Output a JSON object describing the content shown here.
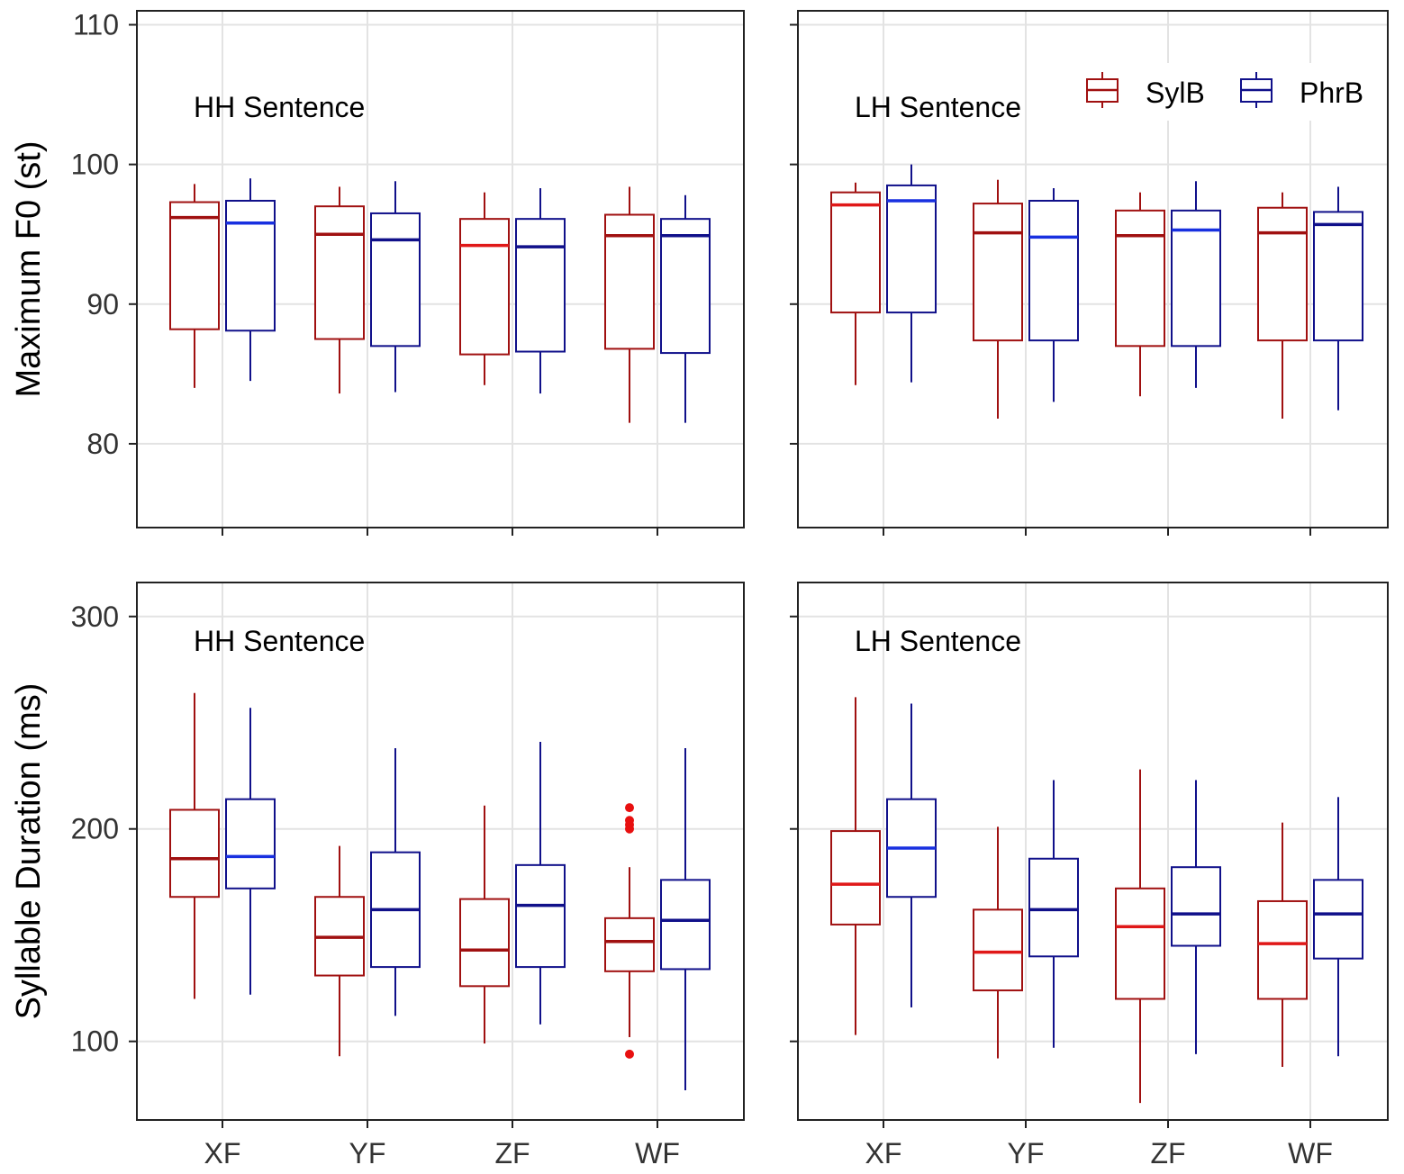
{
  "colors": {
    "sylb": "#a01010",
    "sylb_median_light": "#e01818",
    "phrb": "#10108a",
    "phrb_median_light": "#1830e0",
    "outlier": "#e81010",
    "grid": "#e3e3e3",
    "frame": "#222222"
  },
  "legend": {
    "entries": [
      {
        "key": "sylb",
        "label": "SylB"
      },
      {
        "key": "phrb",
        "label": "PhrB"
      }
    ],
    "position": "top-right"
  },
  "chart_data": [
    {
      "type": "boxplot",
      "row": "f0",
      "ylabel": "Maximum F0 (st)",
      "ylim": [
        74,
        111
      ],
      "yticks": [
        80,
        90,
        100,
        110
      ],
      "ytick_labels": [
        "80",
        "90",
        "100",
        "110"
      ],
      "categories": [
        "XF",
        "YF",
        "ZF",
        "WF"
      ],
      "panels": [
        {
          "label": "HH Sentence",
          "series": [
            {
              "name": "SylB",
              "key": "sylb",
              "boxes": [
                {
                  "min": 84.0,
                  "q1": 88.2,
                  "median": 96.2,
                  "q3": 97.3,
                  "max": 98.6,
                  "light": false
                },
                {
                  "min": 83.6,
                  "q1": 87.5,
                  "median": 95.0,
                  "q3": 97.0,
                  "max": 98.4,
                  "light": false
                },
                {
                  "min": 84.2,
                  "q1": 86.4,
                  "median": 94.2,
                  "q3": 96.1,
                  "max": 98.0,
                  "light": true
                },
                {
                  "min": 81.5,
                  "q1": 86.8,
                  "median": 94.9,
                  "q3": 96.4,
                  "max": 98.4,
                  "light": false
                }
              ]
            },
            {
              "name": "PhrB",
              "key": "phrb",
              "boxes": [
                {
                  "min": 84.5,
                  "q1": 88.1,
                  "median": 95.8,
                  "q3": 97.4,
                  "max": 99.0,
                  "light": true
                },
                {
                  "min": 83.7,
                  "q1": 87.0,
                  "median": 94.6,
                  "q3": 96.5,
                  "max": 98.8,
                  "light": false
                },
                {
                  "min": 83.6,
                  "q1": 86.6,
                  "median": 94.1,
                  "q3": 96.1,
                  "max": 98.3,
                  "light": false
                },
                {
                  "min": 81.5,
                  "q1": 86.5,
                  "median": 94.9,
                  "q3": 96.1,
                  "max": 97.8,
                  "light": false
                }
              ]
            }
          ]
        },
        {
          "label": "LH Sentence",
          "series": [
            {
              "name": "SylB",
              "key": "sylb",
              "boxes": [
                {
                  "min": 84.2,
                  "q1": 89.4,
                  "median": 97.1,
                  "q3": 98.0,
                  "max": 98.7,
                  "light": true
                },
                {
                  "min": 81.8,
                  "q1": 87.4,
                  "median": 95.1,
                  "q3": 97.2,
                  "max": 98.9,
                  "light": false
                },
                {
                  "min": 83.4,
                  "q1": 87.0,
                  "median": 94.9,
                  "q3": 96.7,
                  "max": 98.0,
                  "light": false
                },
                {
                  "min": 81.8,
                  "q1": 87.4,
                  "median": 95.1,
                  "q3": 96.9,
                  "max": 98.0,
                  "light": false
                }
              ]
            },
            {
              "name": "PhrB",
              "key": "phrb",
              "boxes": [
                {
                  "min": 84.4,
                  "q1": 89.4,
                  "median": 97.4,
                  "q3": 98.5,
                  "max": 100.0,
                  "light": true
                },
                {
                  "min": 83.0,
                  "q1": 87.4,
                  "median": 94.8,
                  "q3": 97.4,
                  "max": 98.3,
                  "light": true
                },
                {
                  "min": 84.0,
                  "q1": 87.0,
                  "median": 95.3,
                  "q3": 96.7,
                  "max": 98.8,
                  "light": true
                },
                {
                  "min": 82.4,
                  "q1": 87.4,
                  "median": 95.7,
                  "q3": 96.6,
                  "max": 98.4,
                  "light": false
                }
              ]
            }
          ]
        }
      ]
    },
    {
      "type": "boxplot",
      "row": "duration",
      "ylabel": "Syllable Duration (ms)",
      "xlabel_ticks": [
        "XF",
        "YF",
        "ZF",
        "WF"
      ],
      "ylim": [
        63,
        316
      ],
      "yticks": [
        100,
        200,
        300
      ],
      "ytick_labels": [
        "100",
        "200",
        "300"
      ],
      "categories": [
        "XF",
        "YF",
        "ZF",
        "WF"
      ],
      "panels": [
        {
          "label": "HH Sentence",
          "series": [
            {
              "name": "SylB",
              "key": "sylb",
              "boxes": [
                {
                  "min": 120,
                  "q1": 168,
                  "median": 186,
                  "q3": 209,
                  "max": 264,
                  "light": false,
                  "outliers": []
                },
                {
                  "min": 93,
                  "q1": 131,
                  "median": 149,
                  "q3": 168,
                  "max": 192,
                  "light": false,
                  "outliers": []
                },
                {
                  "min": 99,
                  "q1": 126,
                  "median": 143,
                  "q3": 167,
                  "max": 211,
                  "light": false,
                  "outliers": []
                },
                {
                  "min": 102,
                  "q1": 133,
                  "median": 147,
                  "q3": 158,
                  "max": 182,
                  "light": false,
                  "outliers": [
                    94,
                    200,
                    202,
                    204,
                    210
                  ]
                }
              ]
            },
            {
              "name": "PhrB",
              "key": "phrb",
              "boxes": [
                {
                  "min": 122,
                  "q1": 172,
                  "median": 187,
                  "q3": 214,
                  "max": 257,
                  "light": true,
                  "outliers": []
                },
                {
                  "min": 112,
                  "q1": 135,
                  "median": 162,
                  "q3": 189,
                  "max": 238,
                  "light": false,
                  "outliers": []
                },
                {
                  "min": 108,
                  "q1": 135,
                  "median": 164,
                  "q3": 183,
                  "max": 241,
                  "light": false,
                  "outliers": []
                },
                {
                  "min": 77,
                  "q1": 134,
                  "median": 157,
                  "q3": 176,
                  "max": 238,
                  "light": false,
                  "outliers": []
                }
              ]
            }
          ]
        },
        {
          "label": "LH Sentence",
          "series": [
            {
              "name": "SylB",
              "key": "sylb",
              "boxes": [
                {
                  "min": 103,
                  "q1": 155,
                  "median": 174,
                  "q3": 199,
                  "max": 262,
                  "light": true,
                  "outliers": []
                },
                {
                  "min": 92,
                  "q1": 124,
                  "median": 142,
                  "q3": 162,
                  "max": 201,
                  "light": true,
                  "outliers": []
                },
                {
                  "min": 71,
                  "q1": 120,
                  "median": 154,
                  "q3": 172,
                  "max": 228,
                  "light": true,
                  "outliers": []
                },
                {
                  "min": 88,
                  "q1": 120,
                  "median": 146,
                  "q3": 166,
                  "max": 203,
                  "light": true,
                  "outliers": []
                }
              ]
            },
            {
              "name": "PhrB",
              "key": "phrb",
              "boxes": [
                {
                  "min": 116,
                  "q1": 168,
                  "median": 191,
                  "q3": 214,
                  "max": 259,
                  "light": true,
                  "outliers": []
                },
                {
                  "min": 97,
                  "q1": 140,
                  "median": 162,
                  "q3": 186,
                  "max": 223,
                  "light": false,
                  "outliers": []
                },
                {
                  "min": 94,
                  "q1": 145,
                  "median": 160,
                  "q3": 182,
                  "max": 223,
                  "light": false,
                  "outliers": []
                },
                {
                  "min": 93,
                  "q1": 139,
                  "median": 160,
                  "q3": 176,
                  "max": 215,
                  "light": false,
                  "outliers": []
                }
              ]
            }
          ]
        }
      ]
    }
  ]
}
